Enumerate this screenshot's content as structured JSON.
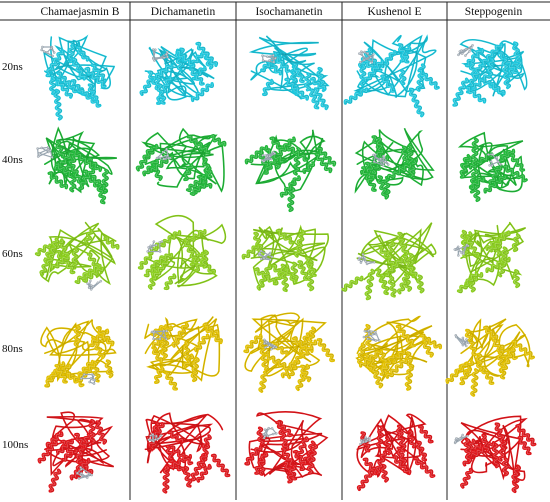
{
  "table": {
    "columns": [
      "Chamaejasmin B",
      "Dichamanetin",
      "Isochamanetin",
      "Kushenol E",
      "Steppogenin"
    ],
    "rows": [
      "20ns",
      "40ns",
      "60ns",
      "80ns",
      "100ns"
    ],
    "row_colors": [
      "#1cc7dd",
      "#22b83a",
      "#8ccf1f",
      "#e2c000",
      "#e0161b"
    ],
    "ligand_color": "#9aa7b2"
  }
}
